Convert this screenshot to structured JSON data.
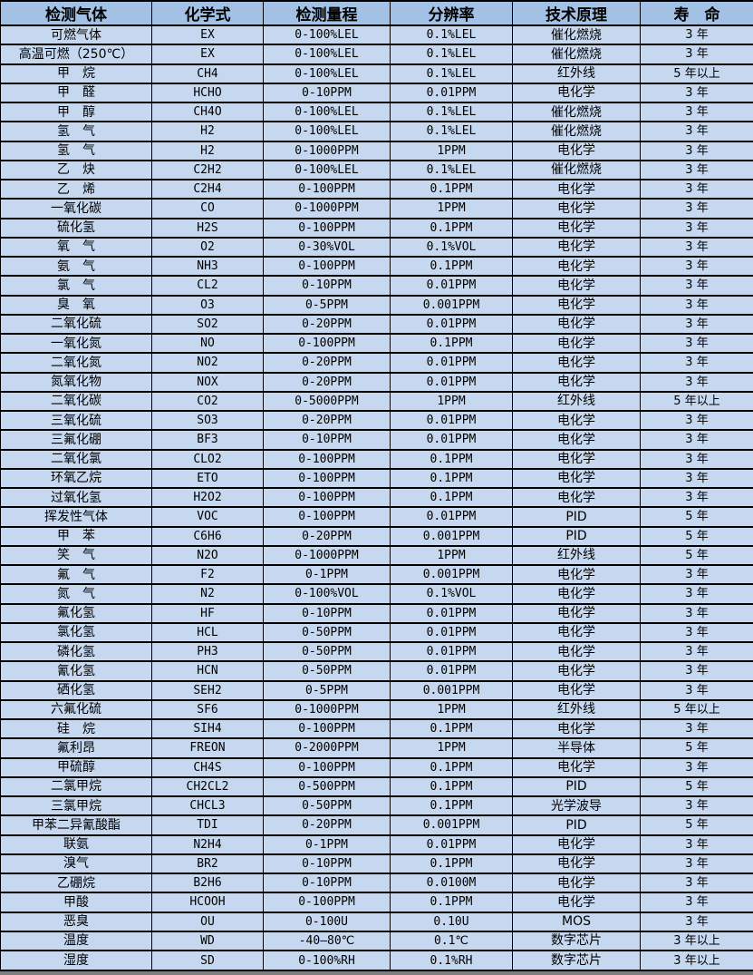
{
  "colors": {
    "header_bg": "#a2c1e5",
    "row_bg": "#c6d8f0",
    "border": "#000000",
    "text": "#000000",
    "page_edge": "#7f7f7f"
  },
  "table": {
    "columns": [
      {
        "key": "gas",
        "label": "检测气体"
      },
      {
        "key": "formula",
        "label": "化学式"
      },
      {
        "key": "range",
        "label": "检测量程"
      },
      {
        "key": "resolution",
        "label": "分辨率"
      },
      {
        "key": "principle",
        "label": "技术原理"
      },
      {
        "key": "lifespan",
        "label": "寿　命"
      }
    ],
    "rows": [
      {
        "gas": "可燃气体",
        "formula": "EX",
        "range": "0-100%LEL",
        "resolution": "0.1%LEL",
        "principle": "催化燃烧",
        "lifespan": "3 年"
      },
      {
        "gas": "高温可燃（250℃）",
        "formula": "EX",
        "range": "0-100%LEL",
        "resolution": "0.1%LEL",
        "principle": "催化燃烧",
        "lifespan": "3 年"
      },
      {
        "gas": "甲　烷",
        "formula": "CH4",
        "range": "0-100%LEL",
        "resolution": "0.1%LEL",
        "principle": "红外线",
        "lifespan": "5 年以上"
      },
      {
        "gas": "甲　醛",
        "formula": "HCHO",
        "range": "0-10PPM",
        "resolution": "0.01PPM",
        "principle": "电化学",
        "lifespan": "3 年"
      },
      {
        "gas": "甲　醇",
        "formula": "CH4O",
        "range": "0-100%LEL",
        "resolution": "0.1%LEL",
        "principle": "催化燃烧",
        "lifespan": "3 年"
      },
      {
        "gas": "氢　气",
        "formula": "H2",
        "range": "0-100%LEL",
        "resolution": "0.1%LEL",
        "principle": "催化燃烧",
        "lifespan": "3 年"
      },
      {
        "gas": "氢　气",
        "formula": "H2",
        "range": "0-1000PPM",
        "resolution": "1PPM",
        "principle": "电化学",
        "lifespan": "3 年"
      },
      {
        "gas": "乙　炔",
        "formula": "C2H2",
        "range": "0-100%LEL",
        "resolution": "0.1%LEL",
        "principle": "催化燃烧",
        "lifespan": "3 年"
      },
      {
        "gas": "乙　烯",
        "formula": "C2H4",
        "range": "0-100PPM",
        "resolution": "0.1PPM",
        "principle": "电化学",
        "lifespan": "3 年"
      },
      {
        "gas": "一氧化碳",
        "formula": "CO",
        "range": "0-1000PPM",
        "resolution": "1PPM",
        "principle": "电化学",
        "lifespan": "3 年"
      },
      {
        "gas": "硫化氢",
        "formula": "H2S",
        "range": "0-100PPM",
        "resolution": "0.1PPM",
        "principle": "电化学",
        "lifespan": "3 年"
      },
      {
        "gas": "氧　气",
        "formula": "O2",
        "range": "0-30%VOL",
        "resolution": "0.1%VOL",
        "principle": "电化学",
        "lifespan": "3 年"
      },
      {
        "gas": "氨　气",
        "formula": "NH3",
        "range": "0-100PPM",
        "resolution": "0.1PPM",
        "principle": "电化学",
        "lifespan": "3 年"
      },
      {
        "gas": "氯　气",
        "formula": "CL2",
        "range": "0-10PPM",
        "resolution": "0.01PPM",
        "principle": "电化学",
        "lifespan": "3 年"
      },
      {
        "gas": "臭　氧",
        "formula": "O3",
        "range": "0-5PPM",
        "resolution": "0.001PPM",
        "principle": "电化学",
        "lifespan": "3 年"
      },
      {
        "gas": "二氧化硫",
        "formula": "SO2",
        "range": "0-20PPM",
        "resolution": "0.01PPM",
        "principle": "电化学",
        "lifespan": "3 年"
      },
      {
        "gas": "一氧化氮",
        "formula": "NO",
        "range": "0-100PPM",
        "resolution": "0.1PPM",
        "principle": "电化学",
        "lifespan": "3 年"
      },
      {
        "gas": "二氧化氮",
        "formula": "NO2",
        "range": "0-20PPM",
        "resolution": "0.01PPM",
        "principle": "电化学",
        "lifespan": "3 年"
      },
      {
        "gas": "氮氧化物",
        "formula": "NOX",
        "range": "0-20PPM",
        "resolution": "0.01PPM",
        "principle": "电化学",
        "lifespan": "3 年"
      },
      {
        "gas": "二氧化碳",
        "formula": "CO2",
        "range": "0-5000PPM",
        "resolution": "1PPM",
        "principle": "红外线",
        "lifespan": "5 年以上"
      },
      {
        "gas": "三氧化硫",
        "formula": "SO3",
        "range": "0-20PPM",
        "resolution": "0.01PPM",
        "principle": "电化学",
        "lifespan": "3 年"
      },
      {
        "gas": "三氟化硼",
        "formula": "BF3",
        "range": "0-10PPM",
        "resolution": "0.01PPM",
        "principle": "电化学",
        "lifespan": "3 年"
      },
      {
        "gas": "二氧化氯",
        "formula": "CLO2",
        "range": "0-100PPM",
        "resolution": "0.1PPM",
        "principle": "电化学",
        "lifespan": "3 年"
      },
      {
        "gas": "环氧乙烷",
        "formula": "ETO",
        "range": "0-100PPM",
        "resolution": "0.1PPM",
        "principle": "电化学",
        "lifespan": "3 年"
      },
      {
        "gas": "过氧化氢",
        "formula": "H2O2",
        "range": "0-100PPM",
        "resolution": "0.1PPM",
        "principle": "电化学",
        "lifespan": "3 年"
      },
      {
        "gas": "挥发性气体",
        "formula": "VOC",
        "range": "0-100PPM",
        "resolution": "0.01PPM",
        "principle": "PID",
        "lifespan": "5 年"
      },
      {
        "gas": "甲　苯",
        "formula": "C6H6",
        "range": "0-20PPM",
        "resolution": "0.001PPM",
        "principle": "PID",
        "lifespan": "5 年"
      },
      {
        "gas": "笑　气",
        "formula": "N2O",
        "range": "0-1000PPM",
        "resolution": "1PPM",
        "principle": "红外线",
        "lifespan": "5 年"
      },
      {
        "gas": "氟　气",
        "formula": "F2",
        "range": "0-1PPM",
        "resolution": "0.001PPM",
        "principle": "电化学",
        "lifespan": "3 年"
      },
      {
        "gas": "氮　气",
        "formula": "N2",
        "range": "0-100%VOL",
        "resolution": "0.1%VOL",
        "principle": "电化学",
        "lifespan": "3 年"
      },
      {
        "gas": "氟化氢",
        "formula": "HF",
        "range": "0-10PPM",
        "resolution": "0.01PPM",
        "principle": "电化学",
        "lifespan": "3 年"
      },
      {
        "gas": "氯化氢",
        "formula": "HCL",
        "range": "0-50PPM",
        "resolution": "0.01PPM",
        "principle": "电化学",
        "lifespan": "3 年"
      },
      {
        "gas": "磷化氢",
        "formula": "PH3",
        "range": "0-50PPM",
        "resolution": "0.01PPM",
        "principle": "电化学",
        "lifespan": "3 年"
      },
      {
        "gas": "氰化氢",
        "formula": "HCN",
        "range": "0-50PPM",
        "resolution": "0.01PPM",
        "principle": "电化学",
        "lifespan": "3 年"
      },
      {
        "gas": "硒化氢",
        "formula": "SEH2",
        "range": "0-5PPM",
        "resolution": "0.001PPM",
        "principle": "电化学",
        "lifespan": "3 年"
      },
      {
        "gas": "六氟化硫",
        "formula": "SF6",
        "range": "0-1000PPM",
        "resolution": "1PPM",
        "principle": "红外线",
        "lifespan": "5 年以上"
      },
      {
        "gas": "硅　烷",
        "formula": "SIH4",
        "range": "0-100PPM",
        "resolution": "0.1PPM",
        "principle": "电化学",
        "lifespan": "3 年"
      },
      {
        "gas": "氟利昂",
        "formula": "FREON",
        "range": "0-2000PPM",
        "resolution": "1PPM",
        "principle": "半导体",
        "lifespan": "5 年"
      },
      {
        "gas": "甲硫醇",
        "formula": "CH4S",
        "range": "0-100PPM",
        "resolution": "0.1PPM",
        "principle": "电化学",
        "lifespan": "3 年"
      },
      {
        "gas": "二氯甲烷",
        "formula": "CH2CL2",
        "range": "0-500PPM",
        "resolution": "0.1PPM",
        "principle": "PID",
        "lifespan": "5 年"
      },
      {
        "gas": "三氯甲烷",
        "formula": "CHCL3",
        "range": "0-50PPM",
        "resolution": "0.1PPM",
        "principle": "光学波导",
        "lifespan": "3 年"
      },
      {
        "gas": "甲苯二异氰酸酯",
        "formula": "TDI",
        "range": "0-20PPM",
        "resolution": "0.001PPM",
        "principle": "PID",
        "lifespan": "5 年"
      },
      {
        "gas": "联氨",
        "formula": "N2H4",
        "range": "0-1PPM",
        "resolution": "0.01PPM",
        "principle": "电化学",
        "lifespan": "3 年"
      },
      {
        "gas": "溴气",
        "formula": "BR2",
        "range": "0-10PPM",
        "resolution": "0.1PPM",
        "principle": "电化学",
        "lifespan": "3 年"
      },
      {
        "gas": "乙硼烷",
        "formula": "B2H6",
        "range": "0-10PPM",
        "resolution": "0.0100M",
        "principle": "电化学",
        "lifespan": "3 年"
      },
      {
        "gas": "甲酸",
        "formula": "HCOOH",
        "range": "0-100PPM",
        "resolution": "0.1PPM",
        "principle": "电化学",
        "lifespan": "3 年"
      },
      {
        "gas": "恶臭",
        "formula": "OU",
        "range": "0-100U",
        "resolution": "0.10U",
        "principle": "MOS",
        "lifespan": "3 年"
      },
      {
        "gas": "温度",
        "formula": "WD",
        "range": "-40—80℃",
        "resolution": "0.1℃",
        "principle": "数字芯片",
        "lifespan": "3 年以上"
      },
      {
        "gas": "湿度",
        "formula": "SD",
        "range": "0-100%RH",
        "resolution": "0.1%RH",
        "principle": "数字芯片",
        "lifespan": "3 年以上"
      }
    ]
  }
}
